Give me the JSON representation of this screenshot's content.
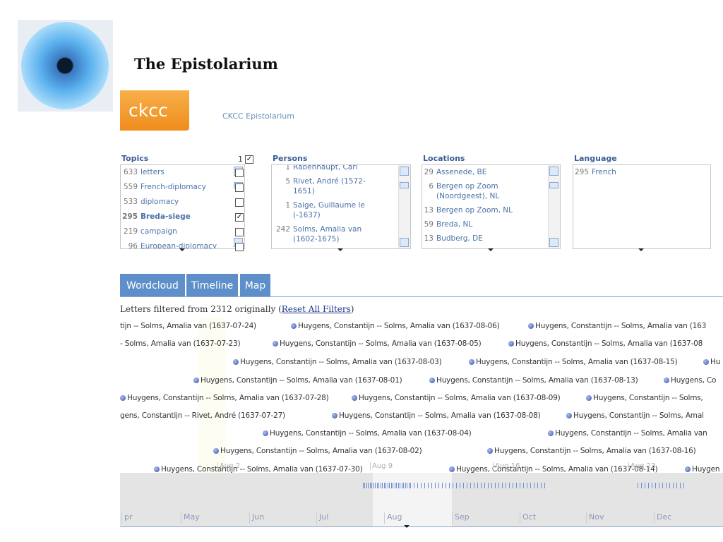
{
  "header": {
    "title": "The Epistolarium",
    "logo": "ckcc",
    "subtitle": "CKCC Epistolarium"
  },
  "facets": [
    {
      "title": "Topics",
      "selected": 1,
      "items": [
        {
          "count": 633,
          "label": "letters",
          "checked": false
        },
        {
          "count": 559,
          "label": "French-diplomacy",
          "checked": false
        },
        {
          "count": 533,
          "label": "diplomacy",
          "checked": false
        },
        {
          "count": 295,
          "label": "Breda-siege",
          "checked": true
        },
        {
          "count": 219,
          "label": "campaign",
          "checked": false
        },
        {
          "count": 96,
          "label": "European-diplomacy",
          "checked": false
        }
      ]
    },
    {
      "title": "Persons",
      "items": [
        {
          "count": 1,
          "label": "Rabenhaupt, Carl"
        },
        {
          "count": 5,
          "label": "Rivet, André (1572-1651)"
        },
        {
          "count": 1,
          "label": "Saige, Guillaume le (-1637)"
        },
        {
          "count": 242,
          "label": "Solms, Amalia van (1602-1675)"
        }
      ]
    },
    {
      "title": "Locations",
      "items": [
        {
          "count": 29,
          "label": "Assenede, BE"
        },
        {
          "count": 6,
          "label": "Bergen op Zoom (Noordgeest), NL"
        },
        {
          "count": 13,
          "label": "Bergen op Zoom, NL"
        },
        {
          "count": 59,
          "label": "Breda, NL"
        },
        {
          "count": 13,
          "label": "Budberg, DE"
        }
      ]
    },
    {
      "title": "Language",
      "items": [
        {
          "count": 295,
          "label": "French"
        }
      ]
    }
  ],
  "tabs": [
    "Wordcloud",
    "Timeline",
    "Map"
  ],
  "status": {
    "before": "Letters filtered from",
    "total": 2312,
    "after": "originally (",
    "link": "Reset All Filters",
    "close": ")"
  },
  "timeline": {
    "rows": [
      [
        "tijn -- Solms, Amalia van (1637-07-24)",
        "Huygens, Constantijn -- Solms, Amalia van (1637-08-06)",
        "Huygens, Constantijn -- Solms, Amalia van (163"
      ],
      [
        "- Solms, Amalia van (1637-07-23)",
        "Huygens, Constantijn -- Solms, Amalia van (1637-08-05)",
        "Huygens, Constantijn -- Solms, Amalia van (1637-08"
      ],
      [
        "Huygens, Constantijn -- Solms, Amalia van (1637-08-03)",
        "Huygens, Constantijn -- Solms, Amalia van (1637-08-15)",
        "Hu"
      ],
      [
        "Huygens, Constantijn -- Solms, Amalia van (1637-08-01)",
        "Huygens, Constantijn -- Solms, Amalia van (1637-08-13)",
        "Huygens, Co"
      ],
      [
        "Huygens, Constantijn -- Solms, Amalia van (1637-07-28)",
        "Huygens, Constantijn -- Solms, Amalia van (1637-08-09)",
        "Huygens, Constantijn -- Solms,"
      ],
      [
        "gens, Constantijn -- Rivet, André (1637-07-27)",
        "Huygens, Constantijn -- Solms, Amalia van (1637-08-08)",
        "Huygens, Constantijn -- Solms, Amal"
      ],
      [
        "Huygens, Constantijn -- Solms, Amalia van (1637-08-04)",
        "Huygens, Constantijn -- Solms, Amalia van"
      ],
      [
        "Huygens, Constantijn -- Solms, Amalia van (1637-08-02)",
        "Huygens, Constantijn -- Solms, Amalia van (1637-08-16)"
      ],
      [
        "Huygens, Constantijn -- Solms, Amalia van (1637-07-30)",
        "Huygens, Constantijn -- Solms, Amalia van (1637-08-14)",
        "Huygen"
      ]
    ],
    "weeks": [
      "Aug 2",
      "Aug 9",
      "Aug 16",
      "Aug 23"
    ],
    "months": [
      "pr",
      "May",
      "Jun",
      "Jul",
      "Aug",
      "Sep",
      "Oct",
      "Nov",
      "Dec"
    ]
  }
}
